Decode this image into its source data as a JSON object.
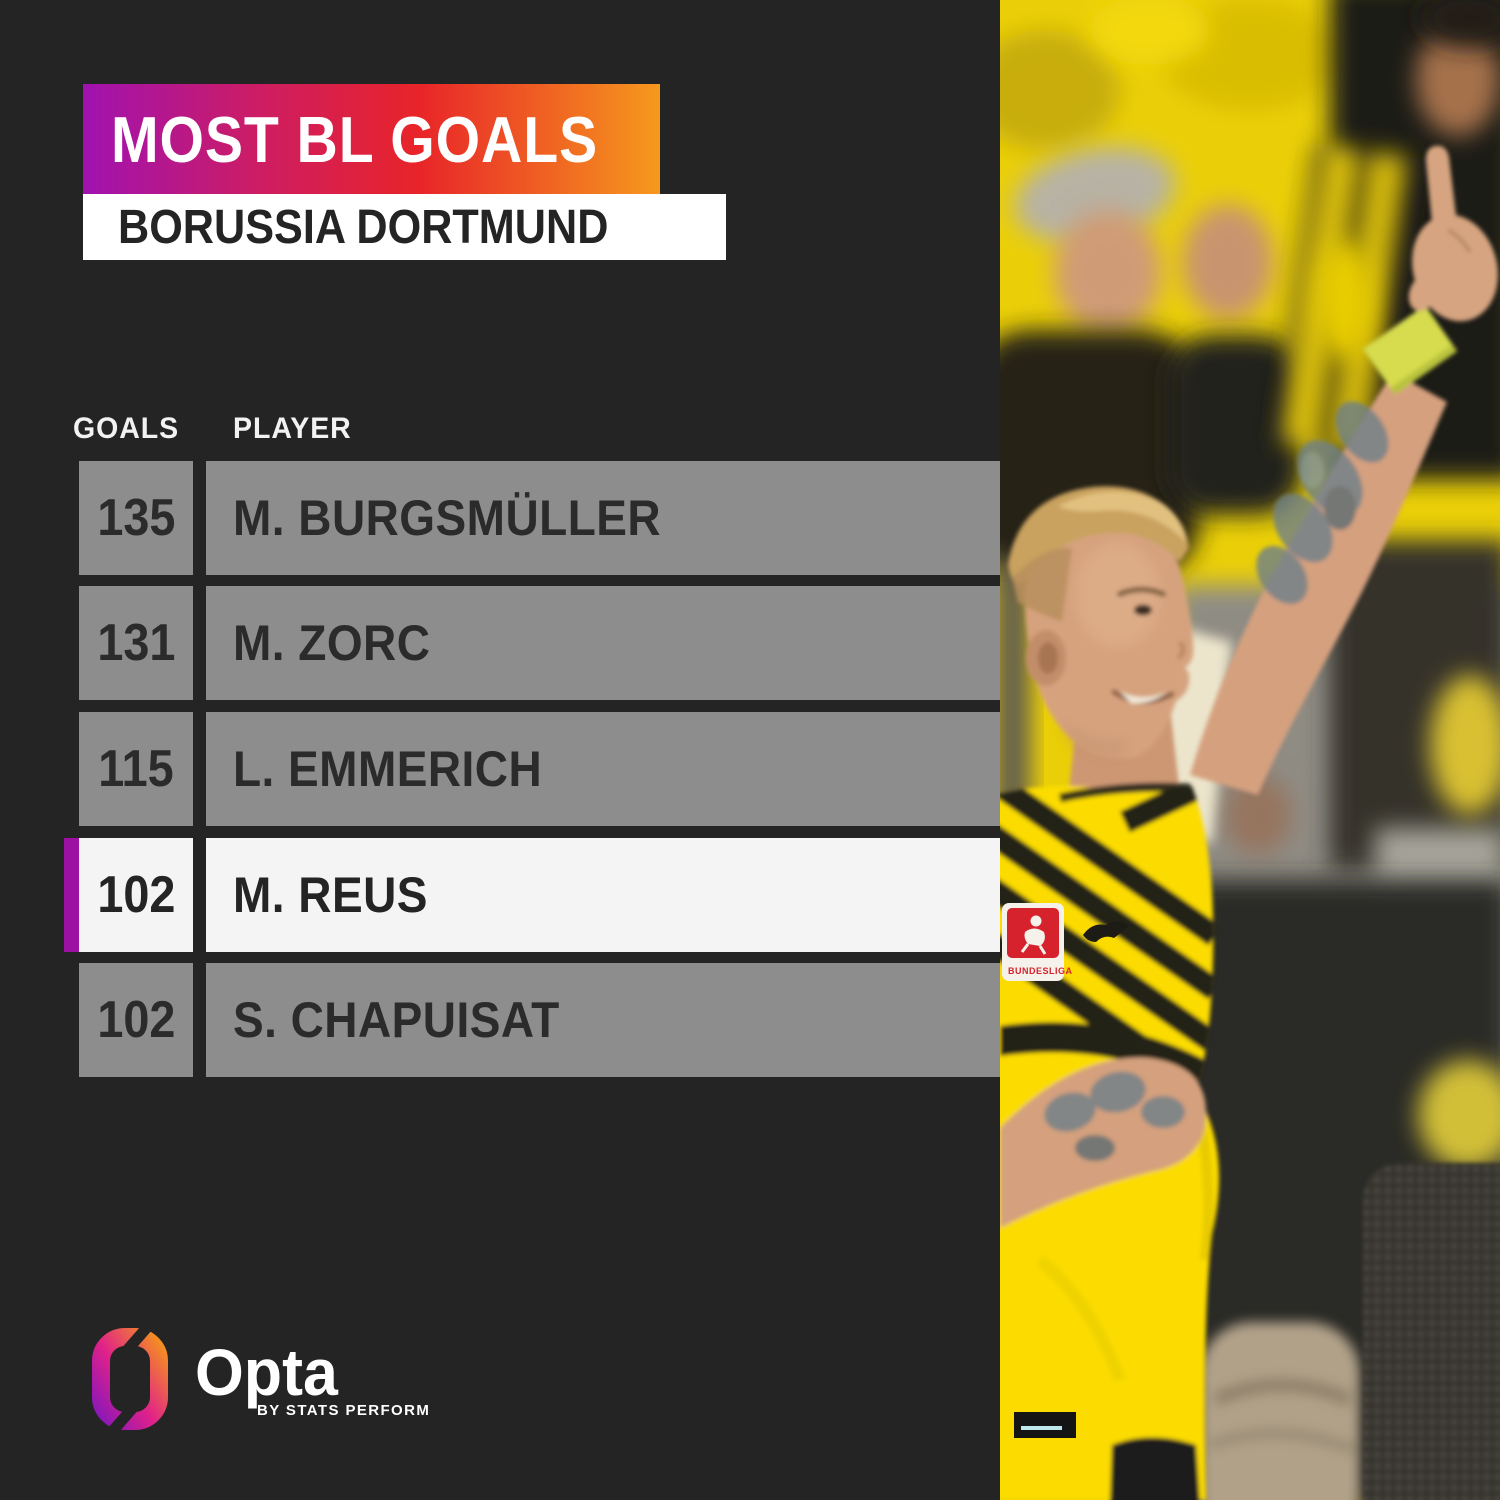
{
  "title_banner": {
    "text": "MOST BL GOALS"
  },
  "subtitle_banner": {
    "text": "BORUSSIA DORTMUND"
  },
  "table": {
    "headers": {
      "goals": "GOALS",
      "player": "PLAYER"
    },
    "rows": [
      {
        "goals": "135",
        "player": "M. BURGSMÜLLER",
        "highlighted": false
      },
      {
        "goals": "131",
        "player": "M. ZORC",
        "highlighted": false
      },
      {
        "goals": "115",
        "player": "L. EMMERICH",
        "highlighted": false
      },
      {
        "goals": "102",
        "player": "M. REUS",
        "highlighted": true
      },
      {
        "goals": "102",
        "player": "S. CHAPUISAT",
        "highlighted": false
      }
    ]
  },
  "footer": {
    "brand": "Opta",
    "byline": "BY STATS PERFORM"
  },
  "photo": {
    "description": "Marco Reus in yellow Borussia Dortmund shirt celebrating, right arm raised with pointing finger, blurred yellow crowd behind",
    "badge_text": "BUNDESLIGA"
  },
  "colors": {
    "background": "#242424",
    "row_gray": "#8d8d8d",
    "row_text": "#2b2b2b",
    "highlight_bg": "#f4f4f4",
    "highlight_accent": "#9c10a2",
    "banner_gradient": [
      "#a012b0",
      "#e82429",
      "#f6991d"
    ],
    "subtitle_bg": "#ffffff",
    "shirt_yellow": "#fbdb06"
  },
  "chart_data": {
    "type": "table",
    "title": "MOST BL GOALS",
    "subtitle": "BORUSSIA DORTMUND",
    "columns": [
      "GOALS",
      "PLAYER"
    ],
    "rows": [
      [
        135,
        "M. BURGSMÜLLER"
      ],
      [
        131,
        "M. ZORC"
      ],
      [
        115,
        "L. EMMERICH"
      ],
      [
        102,
        "M. REUS"
      ],
      [
        102,
        "S. CHAPUISAT"
      ]
    ],
    "highlighted_row": "M. REUS",
    "legend_position": "none",
    "grid": false
  }
}
